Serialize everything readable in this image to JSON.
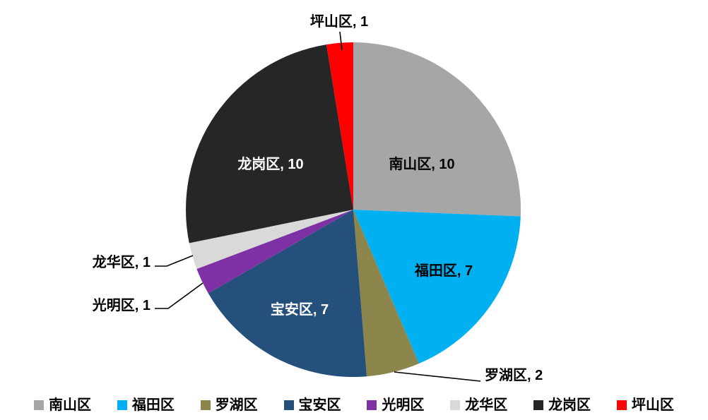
{
  "chart_data": {
    "type": "pie",
    "title": "",
    "categories": [
      "南山区",
      "福田区",
      "罗湖区",
      "宝安区",
      "光明区",
      "龙华区",
      "龙岗区",
      "坪山区"
    ],
    "values": [
      10,
      7,
      2,
      7,
      1,
      1,
      10,
      1
    ],
    "total": 39,
    "colors": [
      "#A6A6A6",
      "#00B0F0",
      "#8C864C",
      "#26507C",
      "#7D31A4",
      "#D9D9D9",
      "#262626",
      "#FF0000"
    ],
    "slugs": [
      "nanshan",
      "futian",
      "luohu",
      "baoan",
      "guangming",
      "longhua",
      "longgang",
      "pingshan"
    ],
    "data_labels": [
      "南山区, 10",
      "福田区, 7",
      "罗湖区, 2",
      "宝安区, 7",
      "光明区, 1",
      "龙华区, 1",
      "龙岗区, 10",
      "坪山区, 1"
    ],
    "label_text_colors": [
      "#000000",
      "#000000",
      "#000000",
      "#FFFFFF",
      "#000000",
      "#000000",
      "#FFFFFF",
      "#000000"
    ],
    "label_placement": [
      "inside",
      "inside",
      "outside",
      "inside",
      "outside",
      "outside",
      "inside",
      "outside"
    ],
    "start_angle_deg": 0,
    "direction": "clockwise",
    "legend_position": "bottom",
    "background_color": "#FFFFFF",
    "leader_line_color": "#000000"
  }
}
